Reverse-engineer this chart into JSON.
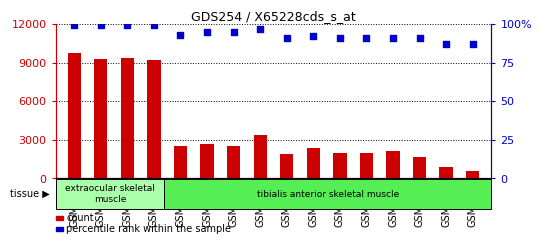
{
  "title": "GDS254 / X65228cds_s_at",
  "categories": [
    "GSM4242",
    "GSM4243",
    "GSM4244",
    "GSM4245",
    "GSM5553",
    "GSM5554",
    "GSM5555",
    "GSM5557",
    "GSM5559",
    "GSM5560",
    "GSM5561",
    "GSM5562",
    "GSM5563",
    "GSM5564",
    "GSM5565",
    "GSM5566"
  ],
  "counts": [
    9700,
    9300,
    9350,
    9200,
    2500,
    2650,
    2550,
    3350,
    1900,
    2400,
    2000,
    2000,
    2100,
    1700,
    900,
    600
  ],
  "percentiles": [
    99,
    99,
    99,
    99,
    93,
    95,
    95,
    97,
    91,
    92,
    91,
    91,
    91,
    91,
    87,
    87
  ],
  "bar_color": "#cc0000",
  "dot_color": "#0000cc",
  "tissue_groups": [
    {
      "label": "extraocular skeletal\nmuscle",
      "start": 0,
      "end": 4,
      "color": "#aaffaa"
    },
    {
      "label": "tibialis anterior skeletal muscle",
      "start": 4,
      "end": 16,
      "color": "#55ee55"
    }
  ],
  "ylim_left": [
    0,
    12000
  ],
  "ylim_right": [
    0,
    100
  ],
  "yticks_left": [
    0,
    3000,
    6000,
    9000,
    12000
  ],
  "yticks_right": [
    0,
    25,
    50,
    75,
    100
  ],
  "ytick_labels_right": [
    "0",
    "25",
    "50",
    "75",
    "100%"
  ],
  "background_color": "#ffffff",
  "tissue_label": "tissue",
  "legend_count_label": "count",
  "legend_pct_label": "percentile rank within the sample"
}
